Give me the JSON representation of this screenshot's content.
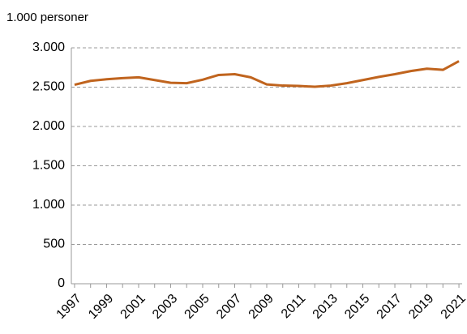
{
  "chart_data": {
    "type": "line",
    "y_axis_label": "1.000 personer",
    "x": [
      1997,
      1998,
      1999,
      2000,
      2001,
      2002,
      2003,
      2004,
      2005,
      2006,
      2007,
      2008,
      2009,
      2010,
      2011,
      2012,
      2013,
      2014,
      2015,
      2016,
      2017,
      2018,
      2019,
      2020,
      2021
    ],
    "series": [
      {
        "name": "Personer",
        "color": "#c0641e",
        "values": [
          2530,
          2580,
          2600,
          2615,
          2625,
          2590,
          2555,
          2550,
          2595,
          2655,
          2665,
          2625,
          2535,
          2520,
          2515,
          2505,
          2520,
          2550,
          2590,
          2630,
          2665,
          2705,
          2735,
          2720,
          2830
        ]
      }
    ],
    "xlim": [
      1996.8,
      2021.2
    ],
    "xticks": [
      1997,
      1999,
      2001,
      2003,
      2005,
      2007,
      2009,
      2011,
      2013,
      2015,
      2017,
      2019,
      2021
    ],
    "ylim": [
      0,
      3000
    ],
    "yticks": [
      0,
      500,
      {
        "value": 1000,
        "label": "1.000"
      },
      {
        "value": 1500,
        "label": "1.500"
      },
      {
        "value": 2000,
        "label": "2.000"
      },
      {
        "value": 2500,
        "label": "2.500"
      },
      {
        "value": 3000,
        "label": "3.000"
      }
    ],
    "grid": true
  }
}
